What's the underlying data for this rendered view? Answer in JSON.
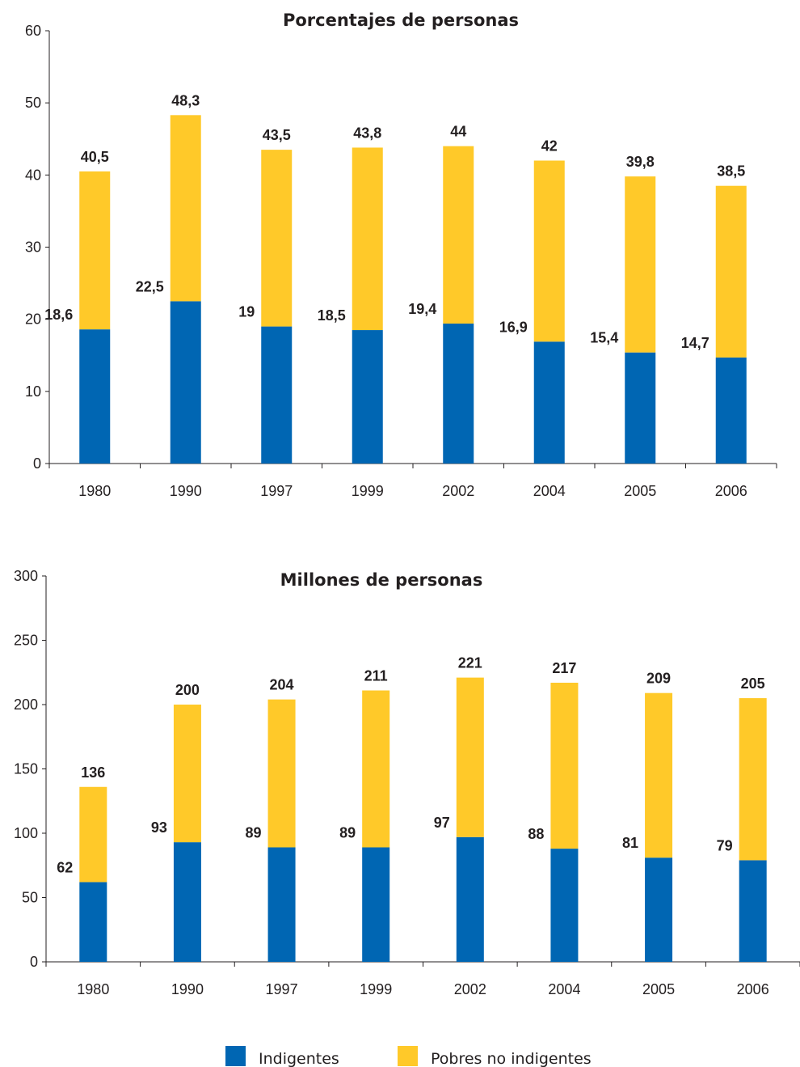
{
  "chart_data": [
    {
      "type": "bar",
      "stacked": true,
      "title": "Porcentajes de personas",
      "categories": [
        "1980",
        "1990",
        "1997",
        "1999",
        "2002",
        "2004",
        "2005",
        "2006"
      ],
      "ylim": [
        0,
        60
      ],
      "yticks": [
        0,
        10,
        20,
        30,
        40,
        50,
        60
      ],
      "series": [
        {
          "name": "Indigentes",
          "values": [
            18.6,
            22.5,
            19,
            18.5,
            19.4,
            16.9,
            15.4,
            14.7
          ],
          "labels": [
            "18,6",
            "22,5",
            "19",
            "18,5",
            "19,4",
            "16,9",
            "15,4",
            "14,7"
          ],
          "color": "#0066b3"
        },
        {
          "name": "Pobres no indigentes",
          "values": [
            21.9,
            25.8,
            24.5,
            25.3,
            24.6,
            25.1,
            24.4,
            23.8
          ],
          "color": "#ffc929"
        }
      ],
      "totals": [
        40.5,
        48.3,
        43.5,
        43.8,
        44,
        42,
        39.8,
        38.5
      ],
      "total_labels": [
        "40,5",
        "48,3",
        "43,5",
        "43,8",
        "44",
        "42",
        "39,8",
        "38,5"
      ],
      "grid": false
    },
    {
      "type": "bar",
      "stacked": true,
      "title": "Millones de personas",
      "categories": [
        "1980",
        "1990",
        "1997",
        "1999",
        "2002",
        "2004",
        "2005",
        "2006"
      ],
      "ylim": [
        0,
        300
      ],
      "yticks": [
        0,
        50,
        100,
        150,
        200,
        250,
        300
      ],
      "series": [
        {
          "name": "Indigentes",
          "values": [
            62,
            93,
            89,
            89,
            97,
            88,
            81,
            79
          ],
          "labels": [
            "62",
            "93",
            "89",
            "89",
            "97",
            "88",
            "81",
            "79"
          ],
          "color": "#0066b3"
        },
        {
          "name": "Pobres no indigentes",
          "values": [
            74,
            107,
            115,
            122,
            124,
            129,
            128,
            126
          ],
          "color": "#ffc929"
        }
      ],
      "totals": [
        136,
        200,
        204,
        211,
        221,
        217,
        209,
        205
      ],
      "total_labels": [
        "136",
        "200",
        "204",
        "211",
        "221",
        "217",
        "209",
        "205"
      ],
      "grid": false
    }
  ],
  "legend": {
    "placement": "bottom",
    "items": [
      {
        "label": "Indigentes",
        "color": "#0066b3"
      },
      {
        "label": "Pobres no indigentes",
        "color": "#ffc929"
      }
    ]
  }
}
